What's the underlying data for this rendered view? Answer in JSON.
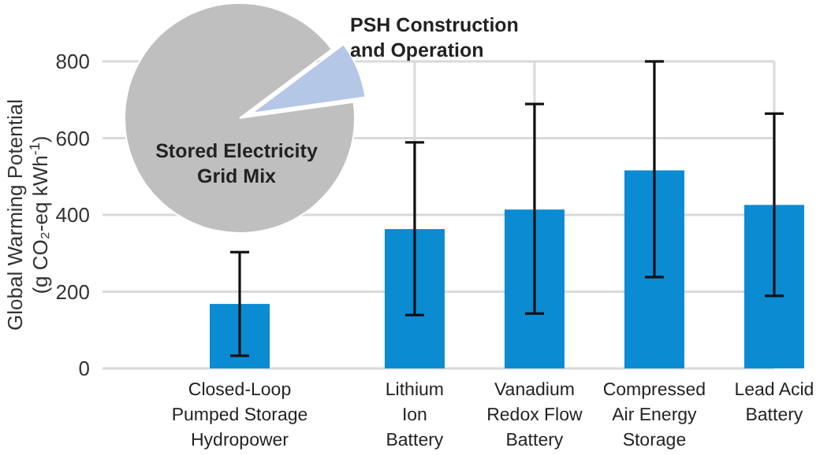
{
  "chart_data": [
    {
      "type": "bar",
      "ylabel": "Global Warming Potential\n(g CO₂-eq kWh$^{-1}$)",
      "categories": [
        "Closed-Loop\nPumped Storage\nHydropower",
        "Lithium\nIon\nBattery",
        "Vanadium\nRedox Flow\nBattery",
        "Compressed\nAir Energy\nStorage",
        "Lead Acid\nBattery"
      ],
      "values": [
        168,
        363,
        414,
        516,
        426
      ],
      "color": "#0a8bd2",
      "errors": [
        [
          33,
          303
        ],
        [
          139,
          589
        ],
        [
          143,
          689
        ],
        [
          238,
          800
        ],
        [
          189,
          664
        ]
      ],
      "ylim": [
        0,
        800
      ],
      "yticks": [
        0,
        200,
        400,
        600,
        800
      ],
      "grid": true
    },
    {
      "type": "pie",
      "categories": [
        "Stored Electricity\nGrid Mix",
        "PSH Construction\nand Operation"
      ],
      "values": [
        92,
        8
      ],
      "colors": [
        "#bfbfbf",
        "#b4c7e7"
      ]
    }
  ]
}
